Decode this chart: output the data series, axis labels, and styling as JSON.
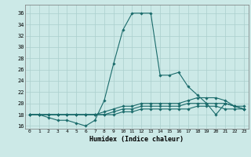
{
  "title": "",
  "xlabel": "Humidex (Indice chaleur)",
  "xlim": [
    -0.5,
    23.5
  ],
  "ylim": [
    15.5,
    37.5
  ],
  "xticks": [
    0,
    1,
    2,
    3,
    4,
    5,
    6,
    7,
    8,
    9,
    10,
    11,
    12,
    13,
    14,
    15,
    16,
    17,
    18,
    19,
    20,
    21,
    22,
    23
  ],
  "yticks": [
    16,
    18,
    20,
    22,
    24,
    26,
    28,
    30,
    32,
    34,
    36
  ],
  "bg_color": "#cce9e7",
  "line_color": "#1a6b6b",
  "grid_color": "#aacfcd",
  "lines": [
    [
      18,
      18,
      17.5,
      17,
      17,
      16.5,
      16,
      17,
      20.5,
      27,
      33,
      36,
      36,
      36,
      25,
      25,
      25.5,
      23,
      21.5,
      20,
      18,
      20,
      19.5,
      19
    ],
    [
      18,
      18,
      18,
      18,
      18,
      18,
      18,
      18,
      18.5,
      19,
      19.5,
      19.5,
      20,
      20,
      20,
      20,
      20,
      20.5,
      21,
      21,
      21,
      20.5,
      19.5,
      19.5
    ],
    [
      18,
      18,
      18,
      18,
      18,
      18,
      18,
      18,
      18,
      18.5,
      19,
      19,
      19.5,
      19.5,
      19.5,
      19.5,
      19.5,
      20,
      20,
      20,
      20,
      20,
      19.5,
      19
    ],
    [
      18,
      18,
      18,
      18,
      18,
      18,
      18,
      18,
      18,
      18,
      18.5,
      18.5,
      19,
      19,
      19,
      19,
      19,
      19,
      19.5,
      19.5,
      19.5,
      19,
      19,
      19
    ]
  ]
}
